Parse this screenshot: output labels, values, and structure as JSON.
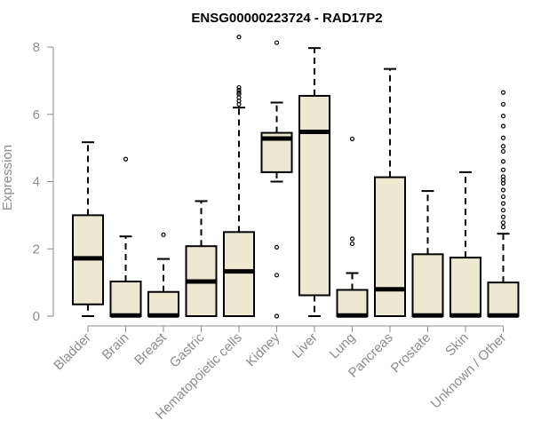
{
  "chart_data": {
    "type": "boxplot",
    "title": "ENSG00000223724 - RAD17P2",
    "xlabel": "",
    "ylabel": "Expression",
    "ylim": [
      0,
      8
    ],
    "yticks": [
      0,
      2,
      4,
      6,
      8
    ],
    "grid": false,
    "legend": "none",
    "box_fill": "#ede8d0",
    "box_stroke": "#000000",
    "axis_color": "#8c8c8c",
    "categories": [
      "Bladder",
      "Brain",
      "Breast",
      "Gastric",
      "Hematopoietic cells",
      "Kidney",
      "Liver",
      "Lung",
      "Pancreas",
      "Prostate",
      "Skin",
      "Unknown / Other"
    ],
    "boxes": [
      {
        "whisker_low": 0,
        "q1": 0.35,
        "median": 1.72,
        "q3": 3.0,
        "whisker_high": 5.17,
        "outliers": []
      },
      {
        "whisker_low": 0,
        "q1": 0,
        "median": 0.02,
        "q3": 1.03,
        "whisker_high": 2.37,
        "outliers": [
          4.67
        ]
      },
      {
        "whisker_low": 0,
        "q1": 0,
        "median": 0.02,
        "q3": 0.72,
        "whisker_high": 1.7,
        "outliers": [
          2.42
        ]
      },
      {
        "whisker_low": 0,
        "q1": 0,
        "median": 1.03,
        "q3": 2.08,
        "whisker_high": 3.42,
        "outliers": []
      },
      {
        "whisker_low": 0,
        "q1": 0,
        "median": 1.33,
        "q3": 2.5,
        "whisker_high": 6.2,
        "outliers": [
          6.3,
          6.4,
          6.5,
          6.6,
          6.65,
          6.72,
          6.8,
          8.3
        ]
      },
      {
        "whisker_low": 4.0,
        "q1": 4.28,
        "median": 5.28,
        "q3": 5.45,
        "whisker_high": 6.35,
        "outliers": [
          8.13,
          2.05,
          1.22,
          0
        ]
      },
      {
        "whisker_low": 0,
        "q1": 0.62,
        "median": 5.48,
        "q3": 6.55,
        "whisker_high": 7.97,
        "outliers": []
      },
      {
        "whisker_low": 0,
        "q1": 0,
        "median": 0.02,
        "q3": 0.78,
        "whisker_high": 1.28,
        "outliers": [
          5.27,
          2.3,
          2.15
        ]
      },
      {
        "whisker_low": 0,
        "q1": 0,
        "median": 0.8,
        "q3": 4.13,
        "whisker_high": 7.35,
        "outliers": []
      },
      {
        "whisker_low": 0,
        "q1": 0,
        "median": 0.02,
        "q3": 1.84,
        "whisker_high": 3.72,
        "outliers": []
      },
      {
        "whisker_low": 0,
        "q1": 0,
        "median": 0.02,
        "q3": 1.74,
        "whisker_high": 4.28,
        "outliers": []
      },
      {
        "whisker_low": 0,
        "q1": 0,
        "median": 0.02,
        "q3": 1.0,
        "whisker_high": 2.45,
        "outliers": [
          6.65,
          6.3,
          5.95,
          5.65,
          5.3,
          5.05,
          4.9,
          4.6,
          4.35,
          4.15,
          4.05,
          3.95,
          3.75,
          3.55,
          3.35,
          3.15,
          2.95,
          2.78,
          2.65
        ]
      }
    ]
  }
}
